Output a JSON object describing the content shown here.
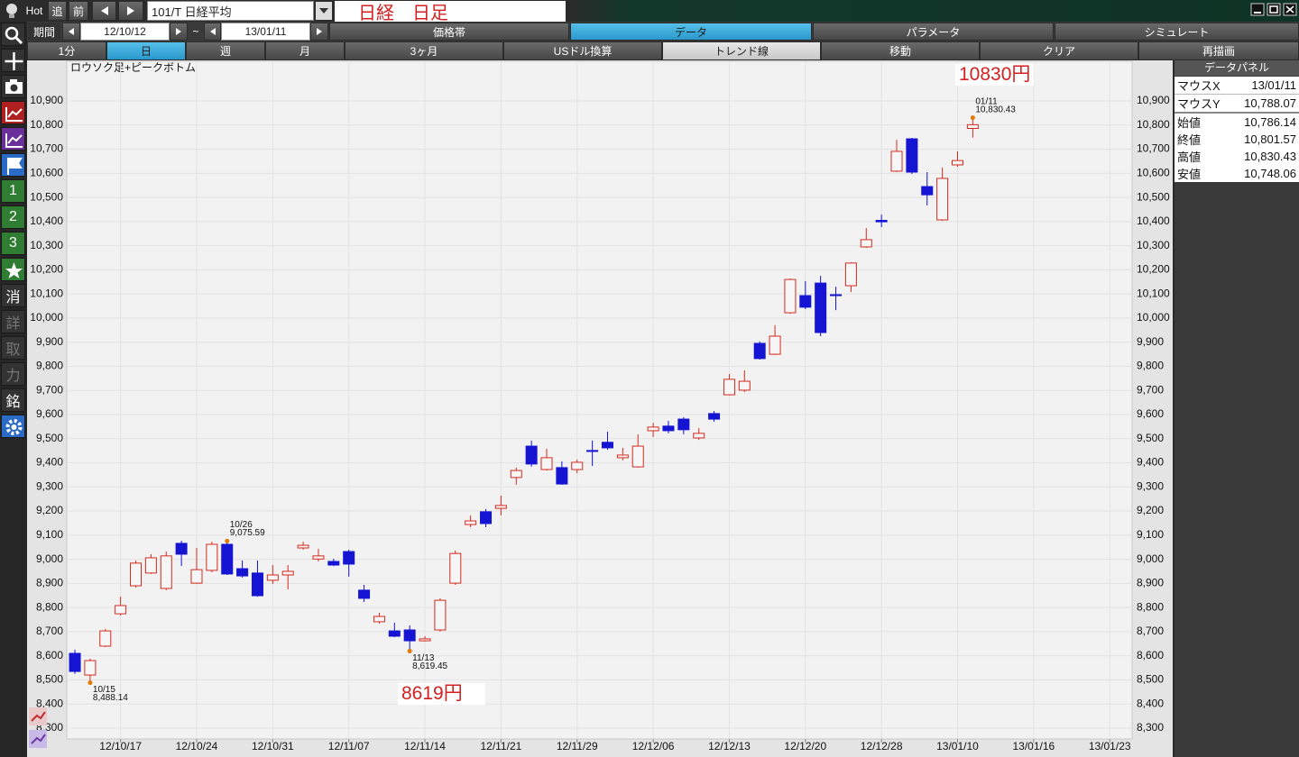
{
  "toolbar": {
    "hot": "Hot",
    "buttons": [
      "追",
      "前"
    ],
    "symbol": "101/T 日経平均",
    "title": "日経　日足"
  },
  "period": {
    "label": "期間",
    "from": "12/10/12",
    "sep": "~",
    "to": "13/01/11"
  },
  "tabs": [
    "価格帯",
    "データ",
    "パラメータ",
    "シミュレート"
  ],
  "ranges": [
    "1分",
    "日",
    "週",
    "月",
    "3ヶ月",
    "USドル換算",
    "トレンド線",
    "移動",
    "クリア",
    "再描画"
  ],
  "sidebar": [
    "1",
    "2",
    "3",
    "消",
    "詳",
    "取",
    "力",
    "銘"
  ],
  "data_panel": {
    "title": "データパネル",
    "rows": [
      [
        "マウスX",
        "13/01/11"
      ],
      [
        "マウスY",
        "10,788.07"
      ],
      [
        "始値",
        "10,786.14"
      ],
      [
        "終値",
        "10,801.57"
      ],
      [
        "高値",
        "10,830.43"
      ],
      [
        "安値",
        "10,748.06"
      ]
    ]
  },
  "chart_data": {
    "type": "candlestick",
    "title": "ロウソク足+ピークボトム",
    "categories": [
      null,
      null,
      null,
      "12/10/17",
      null,
      null,
      null,
      null,
      "12/10/24",
      null,
      null,
      null,
      null,
      "12/10/31",
      null,
      null,
      null,
      null,
      "12/11/07",
      null,
      null,
      null,
      null,
      "12/11/14",
      null,
      null,
      null,
      null,
      "12/11/21",
      null,
      null,
      null,
      null,
      "12/11/29",
      null,
      null,
      null,
      null,
      "12/12/06",
      null,
      null,
      null,
      null,
      "12/12/13",
      null,
      null,
      null,
      null,
      "12/12/20",
      null,
      null,
      null,
      null,
      "12/12/28",
      null,
      null,
      null,
      null,
      "13/01/10",
      null,
      null,
      null,
      null,
      "13/01/16",
      null,
      null,
      null,
      null,
      "13/01/23"
    ],
    "open": [
      8610,
      8520,
      8640,
      8774,
      8890,
      8943,
      8879,
      9066,
      8901,
      8954,
      9062,
      8961,
      8943,
      8913,
      8935,
      9047,
      9001,
      8991,
      9032,
      8872,
      8741,
      8703,
      8707,
      8662,
      8707,
      8901,
      9144,
      9197,
      9211,
      9339,
      9469,
      9372,
      9380,
      9372,
      9451,
      9485,
      9421,
      9383,
      9533,
      9552,
      9581,
      9503,
      9604,
      9682,
      9701,
      9895,
      9850,
      10022,
      10093,
      10145,
      10097,
      10134,
      10295,
      10405,
      10609,
      10743,
      10545,
      10407,
      10635,
      10786.14,
      null,
      null,
      null,
      null,
      null,
      null,
      null,
      null,
      null
    ],
    "high": [
      8625,
      8588,
      8711,
      8845,
      8995,
      9021,
      9032,
      9077,
      9047,
      9073,
      9075.59,
      8995,
      8995,
      8976,
      8976,
      9073,
      9043,
      9002,
      9040,
      8894,
      8778,
      8737,
      8726,
      8681,
      8838,
      9036,
      9182,
      9208,
      9264,
      9380,
      9492,
      9458,
      9406,
      9413,
      9492,
      9529,
      9462,
      9518,
      9566,
      9574,
      9589,
      9544,
      9615,
      9768,
      9783,
      9903,
      9970,
      10164,
      10153,
      10175,
      10130,
      10231,
      10373,
      10429,
      10739,
      10747,
      10605,
      10624,
      10691,
      10830.43,
      null,
      null,
      null,
      null,
      null,
      null,
      null,
      null,
      null
    ],
    "low": [
      8525,
      8488.14,
      8636,
      8767,
      8883,
      8939,
      8872,
      8972,
      8898,
      8946,
      8935,
      8924,
      8845,
      8898,
      8875,
      9040,
      8991,
      8972,
      8928,
      8823,
      8733,
      8677,
      8619.45,
      8659,
      8700,
      8894,
      9133,
      9133,
      9182,
      9309,
      9384,
      9368,
      9309,
      9357,
      9387,
      9454,
      9410,
      9380,
      9507,
      9522,
      9518,
      9495,
      9570,
      9679,
      9693,
      9828,
      9847,
      10018,
      10037,
      9925,
      10033,
      10108,
      10291,
      10377,
      10605,
      10597,
      10467,
      10403,
      10627,
      10748.06,
      null,
      null,
      null,
      null,
      null,
      null,
      null,
      null,
      null
    ],
    "close": [
      8535,
      8580,
      8703,
      8808,
      8984,
      9006,
      9014,
      9021,
      8957,
      9062,
      8939,
      8931,
      8849,
      8935,
      8950,
      9058,
      9014,
      8976,
      8980,
      8838,
      8763,
      8681,
      8662,
      8670,
      8830,
      9024,
      9159,
      9148,
      9223,
      9368,
      9395,
      9421,
      9312,
      9402,
      9447,
      9462,
      9432,
      9469,
      9548,
      9533,
      9537,
      9522,
      9581,
      9746,
      9738,
      9832,
      9925,
      10160,
      10045,
      9940,
      10093,
      10228,
      10325,
      10399,
      10691,
      10605,
      10511,
      10579,
      10653,
      10801.57,
      null,
      null,
      null,
      null,
      null,
      null,
      null,
      null,
      null
    ],
    "up_color": "#d42a1e",
    "down_color": "#1414d2",
    "marker_color": "#e07a00",
    "ylim": [
      8255,
      11057
    ],
    "yticks": [
      {
        "value": 8300,
        "label": "8,300"
      },
      {
        "value": 8400,
        "label": "8,400"
      },
      {
        "value": 8500,
        "label": "8,500"
      },
      {
        "value": 8600,
        "label": "8,600"
      },
      {
        "value": 8700,
        "label": "8,700"
      },
      {
        "value": 8800,
        "label": "8,800"
      },
      {
        "value": 8900,
        "label": "8,900"
      },
      {
        "value": 9000,
        "label": "9,000"
      },
      {
        "value": 9100,
        "label": "9,100"
      },
      {
        "value": 9200,
        "label": "9,200"
      },
      {
        "value": 9300,
        "label": "9,300"
      },
      {
        "value": 9400,
        "label": "9,400"
      },
      {
        "value": 9500,
        "label": "9,500"
      },
      {
        "value": 9600,
        "label": "9,600"
      },
      {
        "value": 9700,
        "label": "9,700"
      },
      {
        "value": 9800,
        "label": "9,800"
      },
      {
        "value": 9900,
        "label": "9,900"
      },
      {
        "value": 10000,
        "label": "10,000"
      },
      {
        "value": 10100,
        "label": "10,100"
      },
      {
        "value": 10200,
        "label": "10,200"
      },
      {
        "value": 10300,
        "label": "10,300"
      },
      {
        "value": 10400,
        "label": "10,400"
      },
      {
        "value": 10500,
        "label": "10,500"
      },
      {
        "value": 10600,
        "label": "10,600"
      },
      {
        "value": 10700,
        "label": "10,700"
      },
      {
        "value": 10800,
        "label": "10,800"
      },
      {
        "value": 10900,
        "label": "10,900"
      }
    ],
    "grid": true,
    "annotations": [
      {
        "date": "10/15",
        "value": 8488.14,
        "label": "8,488.14"
      },
      {
        "date": "10/26",
        "value": 9075.59,
        "label": "9,075.59"
      },
      {
        "date": "11/13",
        "value": 8619.45,
        "label": "8,619.45"
      },
      {
        "date": "01/11",
        "value": 10830.43,
        "label": "10,830.43"
      }
    ],
    "notes": [
      "10830円",
      "8619円"
    ]
  }
}
